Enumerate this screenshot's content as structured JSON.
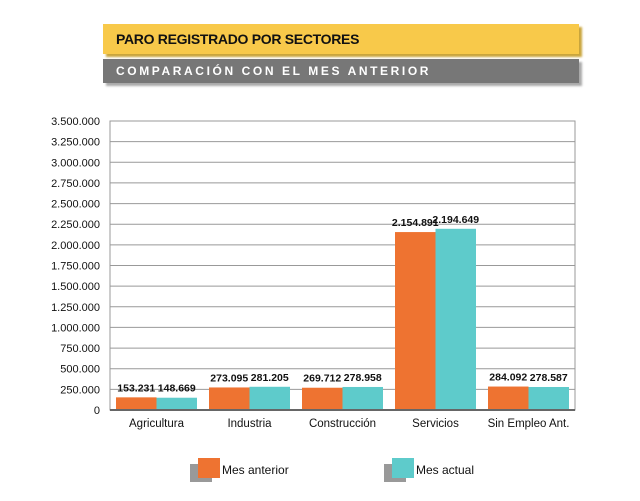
{
  "header": {
    "title": "PARO REGISTRADO POR SECTORES",
    "subtitle": "COMPARACIÓN CON EL MES ANTERIOR"
  },
  "chart_data": {
    "type": "bar",
    "categories": [
      "Agricultura",
      "Industria",
      "Construcción",
      "Servicios",
      "Sin Empleo Ant."
    ],
    "series": [
      {
        "name": "Mes anterior",
        "color": "#ee7331",
        "values": [
          153231,
          273095,
          269712,
          2154891,
          284092
        ],
        "labels": [
          "153.231",
          "273.095",
          "269.712",
          "2.154.891",
          "284.092"
        ]
      },
      {
        "name": "Mes actual",
        "color": "#5ecbcb",
        "values": [
          148669,
          281205,
          278958,
          2194649,
          278587
        ],
        "labels": [
          "148.669",
          "281.205",
          "278.958",
          "2.194.649",
          "278.587"
        ]
      }
    ],
    "ylim": [
      0,
      3500000
    ],
    "yticks": [
      "0",
      "250.000",
      "500.000",
      "750.000",
      "1.000.000",
      "1.250.000",
      "1.500.000",
      "1.750.000",
      "2.000.000",
      "2.250.000",
      "2.500.000",
      "2.750.000",
      "3.000.000",
      "3.250.000",
      "3.500.000"
    ],
    "grid": true,
    "legend": "bottom"
  }
}
